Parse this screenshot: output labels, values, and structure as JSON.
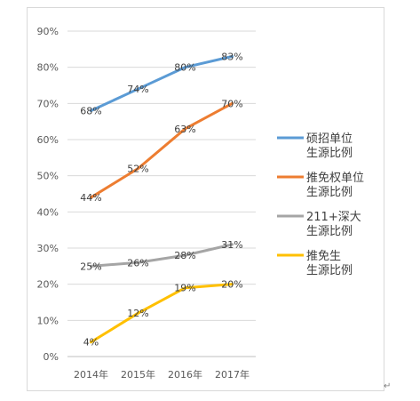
{
  "chart_data": {
    "type": "line",
    "categories": [
      "2014年",
      "2015年",
      "2016年",
      "2017年"
    ],
    "ylim": [
      0,
      90
    ],
    "yticks": [
      "0%",
      "10%",
      "20%",
      "30%",
      "40%",
      "50%",
      "60%",
      "70%",
      "80%",
      "90%"
    ],
    "grid": true,
    "legend_position": "right",
    "series": [
      {
        "name": "硕招单位生源比例",
        "legend_lines": [
          "硕招单位",
          "生源比例"
        ],
        "color": "#5b9bd5",
        "values": [
          68,
          74,
          80,
          83
        ],
        "labels": [
          "68%",
          "74%",
          "80%",
          "83%"
        ]
      },
      {
        "name": "推免权单位生源比例",
        "legend_lines": [
          "推免权单位",
          "生源比例"
        ],
        "color": "#ed7d31",
        "values": [
          44,
          52,
          63,
          70
        ],
        "labels": [
          "44%",
          "52%",
          "63%",
          "70%"
        ]
      },
      {
        "name": "211+深大生源比例",
        "legend_lines": [
          "211+深大",
          "生源比例"
        ],
        "color": "#a5a5a5",
        "values": [
          25,
          26,
          28,
          31
        ],
        "labels": [
          "25%",
          "26%",
          "28%",
          "31%"
        ]
      },
      {
        "name": "推免生生源比例",
        "legend_lines": [
          "推免生",
          "生源比例"
        ],
        "color": "#ffc000",
        "values": [
          4,
          12,
          19,
          20
        ],
        "labels": [
          "4%",
          "12%",
          "19%",
          "20%"
        ]
      }
    ]
  },
  "return_mark": "↵"
}
